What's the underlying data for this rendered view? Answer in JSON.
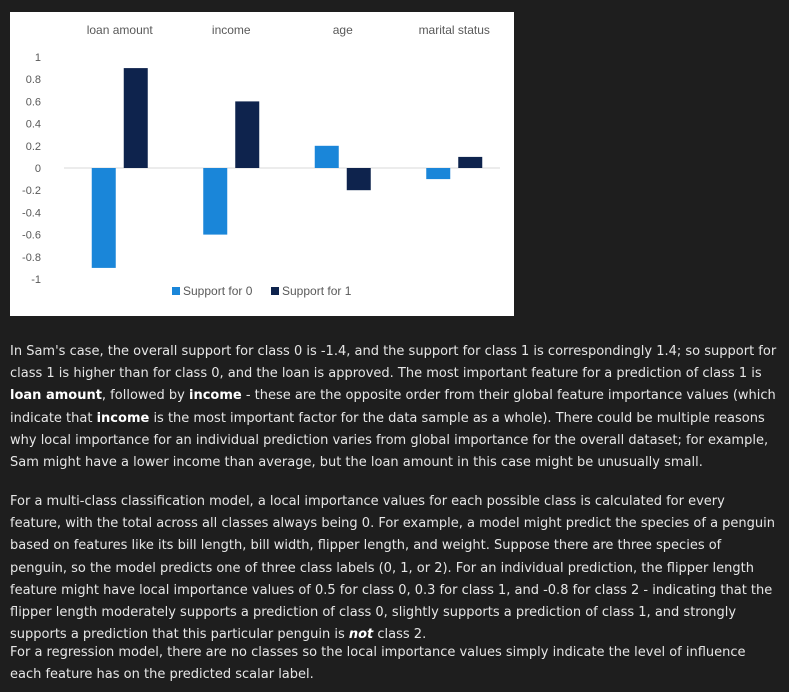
{
  "chart_data": {
    "type": "bar",
    "categories": [
      "loan amount",
      "income",
      "age",
      "marital status"
    ],
    "series": [
      {
        "name": "Support for 0",
        "values": [
          -0.9,
          -0.6,
          0.2,
          -0.1
        ],
        "color": "#1a86d9"
      },
      {
        "name": "Support for 1",
        "values": [
          0.9,
          0.6,
          -0.2,
          0.1
        ],
        "color": "#0e234d"
      }
    ],
    "ylim": [
      -1,
      1
    ],
    "y_ticks": [
      "1",
      "0.8",
      "0.6",
      "0.4",
      "0.2",
      "0",
      "-0.2",
      "-0.4",
      "-0.6",
      "-0.8",
      "-1"
    ],
    "y_tick_values": [
      1,
      0.8,
      0.6,
      0.4,
      0.2,
      0,
      -0.2,
      -0.4,
      -0.6,
      -0.8,
      -1
    ],
    "category_labels_position": "top",
    "legend_position": "bottom",
    "grid": false
  },
  "paragraphs": [
    [
      {
        "t": "In Sam's case, the overall support for class 0 is -1.4, and the support for class 1 is correspondingly 1.4; so support for class 1 is higher than for class 0, and the loan is approved. The most important feature for a prediction of class 1 is "
      },
      {
        "t": "loan amount",
        "s": "b"
      },
      {
        "t": ", followed by "
      },
      {
        "t": "income",
        "s": "b"
      },
      {
        "t": " - these are the opposite order from their global feature importance values (which indicate that "
      },
      {
        "t": "income",
        "s": "b"
      },
      {
        "t": " is the most important factor for the data sample as a whole). There could be multiple reasons why local importance for an individual prediction varies from global importance for the overall dataset; for example, Sam might have a lower income than average, but the loan amount in this case might be unusually small."
      }
    ],
    [
      {
        "t": "For a multi-class classification model, a local importance values for each possible class is calculated for every feature, with the total across all classes always being 0. For example, a model might predict the species of a penguin based on features like its bill length, bill width, flipper length, and weight. Suppose there are three species of penguin, so the model predicts one of three class labels (0, 1, or 2). For an individual prediction, the flipper length feature might have local importance values of 0.5 for class 0, 0.3 for class 1, and -0.8 for class 2 - indicating that the flipper length moderately supports a prediction of class 0, slightly supports a prediction of class 1, and strongly supports a prediction that this particular penguin is "
      },
      {
        "t": "not",
        "s": "i"
      },
      {
        "t": " class 2."
      }
    ],
    [
      {
        "t": "For a regression model, there are no classes so the local importance values simply indicate the level of influence each feature has on the predicted scalar label."
      }
    ]
  ]
}
